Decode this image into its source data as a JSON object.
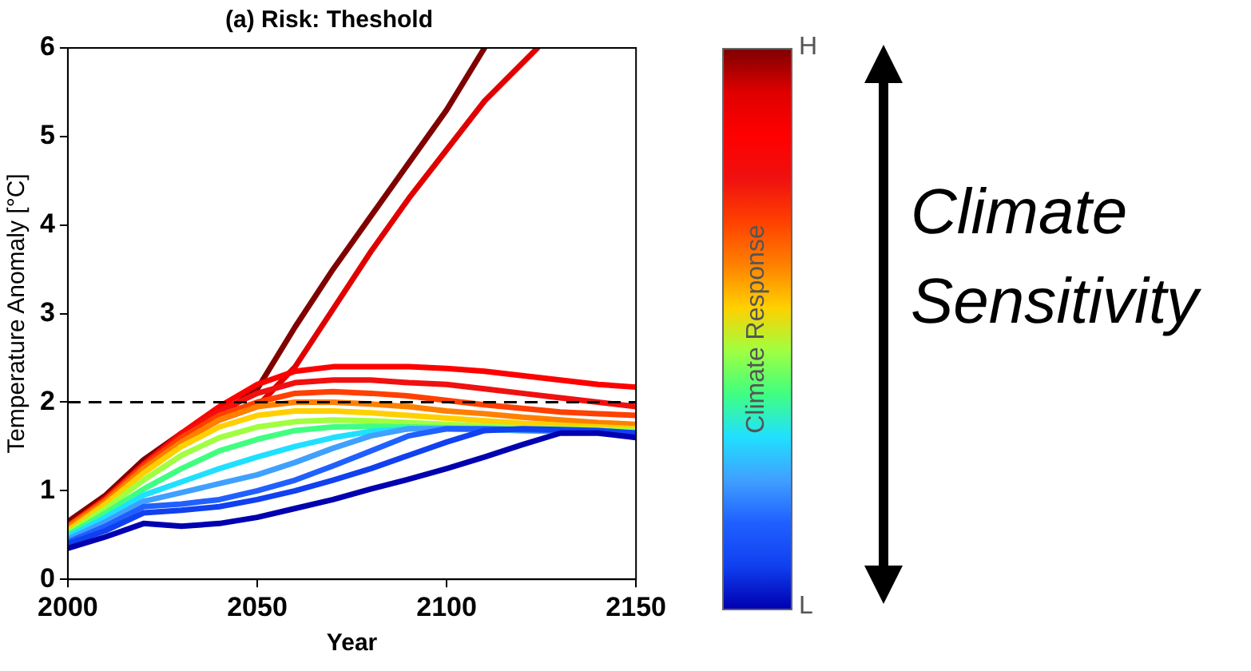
{
  "chart_data": {
    "type": "line",
    "title": "(a) Risk: Theshold",
    "xlabel": "Year",
    "ylabel": "Temperature Anomaly [°C]",
    "clabel": "Climate Response",
    "x": [
      2000,
      2010,
      2020,
      2030,
      2040,
      2050,
      2060,
      2070,
      2080,
      2090,
      2100,
      2110,
      2120,
      2130,
      2140,
      2150
    ],
    "series": [
      {
        "color": "#0000b0",
        "values": [
          0.35,
          0.48,
          0.63,
          0.6,
          0.63,
          0.7,
          0.8,
          0.9,
          1.02,
          1.13,
          1.25,
          1.38,
          1.52,
          1.65,
          1.65,
          1.6
        ]
      },
      {
        "color": "#1040f0",
        "values": [
          0.4,
          0.55,
          0.75,
          0.78,
          0.82,
          0.9,
          1.0,
          1.12,
          1.25,
          1.4,
          1.55,
          1.68,
          1.7,
          1.69,
          1.68,
          1.65
        ]
      },
      {
        "color": "#2060ff",
        "values": [
          0.42,
          0.6,
          0.82,
          0.85,
          0.9,
          1.0,
          1.12,
          1.28,
          1.45,
          1.62,
          1.7,
          1.7,
          1.69,
          1.68,
          1.67,
          1.65
        ]
      },
      {
        "color": "#40a0ff",
        "values": [
          0.45,
          0.65,
          0.88,
          0.98,
          1.08,
          1.18,
          1.32,
          1.48,
          1.62,
          1.7,
          1.7,
          1.69,
          1.68,
          1.67,
          1.66,
          1.65
        ]
      },
      {
        "color": "#20e0ff",
        "values": [
          0.48,
          0.7,
          0.95,
          1.1,
          1.25,
          1.38,
          1.5,
          1.6,
          1.67,
          1.7,
          1.7,
          1.69,
          1.68,
          1.67,
          null,
          null
        ]
      },
      {
        "color": "#40ff80",
        "values": [
          0.5,
          0.75,
          1.02,
          1.25,
          1.45,
          1.58,
          1.68,
          1.72,
          1.73,
          1.72,
          1.71,
          1.7,
          1.69,
          1.68,
          1.67,
          1.66
        ]
      },
      {
        "color": "#a0ff40",
        "values": [
          0.52,
          0.8,
          1.12,
          1.4,
          1.6,
          1.72,
          1.78,
          1.8,
          1.79,
          1.77,
          1.75,
          1.73,
          1.71,
          1.7,
          1.69,
          1.68
        ]
      },
      {
        "color": "#ffd000",
        "values": [
          0.55,
          0.85,
          1.2,
          1.5,
          1.72,
          1.85,
          1.9,
          1.9,
          1.88,
          1.85,
          1.82,
          1.79,
          1.76,
          1.74,
          1.72,
          1.7
        ]
      },
      {
        "color": "#ff8000",
        "values": [
          0.58,
          0.88,
          1.25,
          1.55,
          1.8,
          1.95,
          2.0,
          2.0,
          1.98,
          1.95,
          1.9,
          1.87,
          1.83,
          1.8,
          1.77,
          1.75
        ]
      },
      {
        "color": "#ff4000",
        "values": [
          0.6,
          0.9,
          1.28,
          1.6,
          1.85,
          2.0,
          2.1,
          2.12,
          2.1,
          2.07,
          2.02,
          1.97,
          1.93,
          1.89,
          1.87,
          1.85
        ]
      },
      {
        "color": "#f01010",
        "values": [
          0.6,
          0.9,
          1.3,
          1.62,
          1.9,
          2.1,
          2.22,
          2.25,
          2.25,
          2.22,
          2.2,
          2.15,
          2.1,
          2.05,
          2.0,
          1.95
        ]
      },
      {
        "color": "#ff0000",
        "values": [
          0.6,
          0.9,
          1.3,
          1.65,
          1.95,
          2.2,
          2.35,
          2.4,
          2.4,
          2.4,
          2.38,
          2.35,
          2.3,
          2.25,
          2.2,
          2.17
        ]
      },
      {
        "color": "#e00000",
        "x": [
          2000,
          2010,
          2020,
          2030,
          2040,
          2050,
          2060,
          2070,
          2080,
          2090,
          2100,
          2110,
          2124
        ],
        "values": [
          0.6,
          0.92,
          1.3,
          1.6,
          1.8,
          1.95,
          2.4,
          3.05,
          3.7,
          4.3,
          4.85,
          5.4,
          6.0
        ]
      },
      {
        "color": "#800000",
        "x": [
          2000,
          2010,
          2020,
          2030,
          2040,
          2050,
          2060,
          2070,
          2080,
          2090,
          2100,
          2110
        ],
        "values": [
          0.65,
          0.95,
          1.35,
          1.65,
          1.85,
          2.15,
          2.85,
          3.5,
          4.1,
          4.7,
          5.3,
          6.0
        ]
      }
    ],
    "xlim": [
      2000,
      2150
    ],
    "xticks": [
      2000,
      2050,
      2100,
      2150
    ],
    "ylim": [
      0,
      6
    ],
    "yticks": [
      0,
      1,
      2,
      3,
      4,
      5,
      6
    ],
    "clim": [
      0,
      1
    ],
    "cticks": [
      {
        "value": 0,
        "label": "L"
      },
      {
        "value": 1,
        "label": "H"
      }
    ],
    "ref_lines": [
      {
        "axis": "y",
        "value": 2,
        "color": "#000000",
        "line_style": "dashed"
      }
    ],
    "annotations": [
      "Climate Sensitivity"
    ],
    "grid": false,
    "legend": false,
    "marker": "none",
    "line_style": "solid"
  }
}
